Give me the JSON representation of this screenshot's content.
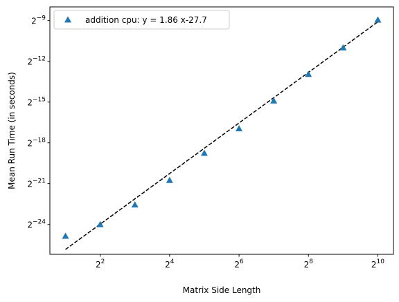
{
  "chart_data": {
    "type": "scatter",
    "xscale": "log2",
    "yscale": "log2",
    "xlabel": "Matrix Side Length",
    "ylabel": "Mean Run Time (in seconds)",
    "xlim_log2": [
      0.55,
      10.45
    ],
    "ylim_log2": [
      -26.2,
      -8.0
    ],
    "xticks": [
      {
        "exp": 2,
        "base": "2",
        "sup": "2"
      },
      {
        "exp": 4,
        "base": "2",
        "sup": "4"
      },
      {
        "exp": 6,
        "base": "2",
        "sup": "6"
      },
      {
        "exp": 8,
        "base": "2",
        "sup": "8"
      },
      {
        "exp": 10,
        "base": "2",
        "sup": "10"
      }
    ],
    "yticks": [
      {
        "exp": -9,
        "base": "2",
        "sup": "−9"
      },
      {
        "exp": -12,
        "base": "2",
        "sup": "−12"
      },
      {
        "exp": -15,
        "base": "2",
        "sup": "−15"
      },
      {
        "exp": -18,
        "base": "2",
        "sup": "−18"
      },
      {
        "exp": -21,
        "base": "2",
        "sup": "−21"
      },
      {
        "exp": -24,
        "base": "2",
        "sup": "−24"
      }
    ],
    "series": [
      {
        "name": "addition cpu: y = 1.86 x-27.7",
        "marker": "triangle",
        "color": "#1f77b4",
        "x_log2": [
          1,
          2,
          3,
          4,
          5,
          6,
          7,
          8,
          9,
          10
        ],
        "y_log2": [
          -24.85,
          -24.0,
          -22.55,
          -20.75,
          -18.75,
          -16.95,
          -14.9,
          -12.95,
          -11.0,
          -8.95
        ]
      }
    ],
    "fit_line": {
      "slope": 1.86,
      "intercept": -27.7,
      "x_range_log2": [
        1,
        10
      ],
      "color": "#000000",
      "style": "dashed"
    },
    "legend": {
      "position": "top-left",
      "label": "addition cpu: y = 1.86 x-27.7"
    }
  }
}
